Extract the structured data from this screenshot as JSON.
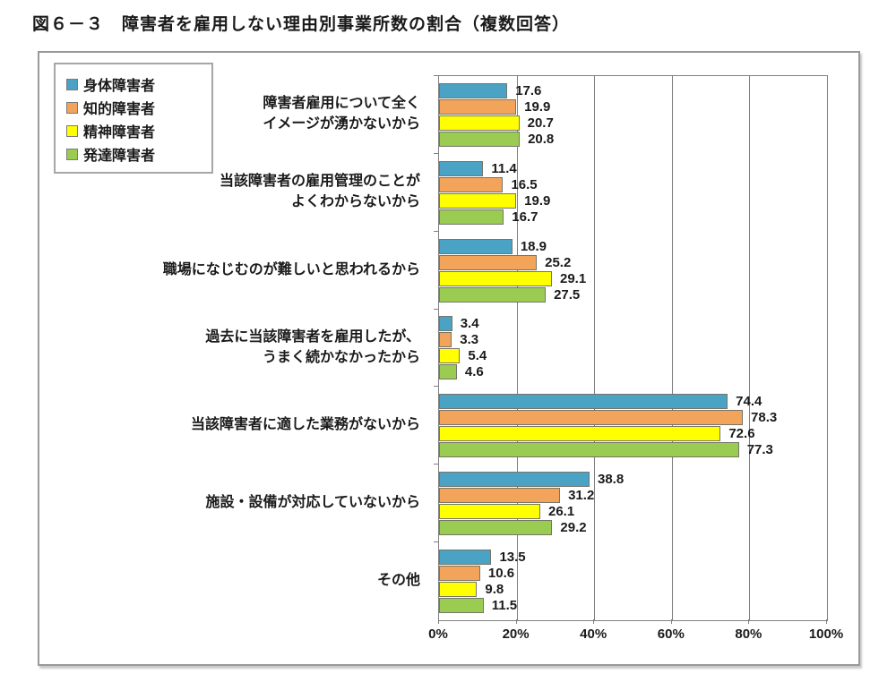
{
  "title": "図６－３　障害者を雇用しない理由別事業所数の割合（複数回答）",
  "chart_data": {
    "type": "bar",
    "orientation": "horizontal",
    "title": "図６－３　障害者を雇用しない理由別事業所数の割合（複数回答）",
    "xlabel": "",
    "ylabel": "",
    "xlim": [
      0,
      100
    ],
    "x_tick_interval": 20,
    "x_ticks": [
      "0%",
      "20%",
      "40%",
      "60%",
      "80%",
      "100%"
    ],
    "gridlines": [
      20,
      40,
      60,
      80
    ],
    "grid": true,
    "legend_position": "top-left",
    "value_label_format": "one-decimal",
    "categories": [
      [
        "障害者雇用について全く",
        "イメージが湧かないから"
      ],
      [
        "当該障害者の雇用管理のことが",
        "よくわからないから"
      ],
      [
        "職場になじむのが難しいと思われるから"
      ],
      [
        "過去に当該障害者を雇用したが、",
        "うまく続かなかったから"
      ],
      [
        "当該障害者に適した業務がないから"
      ],
      [
        "施設・設備が対応していないから"
      ],
      [
        "その他"
      ]
    ],
    "series": [
      {
        "name": "身体障害者",
        "color": "#4AA3C4",
        "values": [
          17.6,
          11.4,
          18.9,
          3.4,
          74.4,
          38.8,
          13.5
        ]
      },
      {
        "name": "知的障害者",
        "color": "#F2A45A",
        "values": [
          19.9,
          16.5,
          25.2,
          3.3,
          78.3,
          31.2,
          10.6
        ]
      },
      {
        "name": "精神障害者",
        "color": "#FFFF00",
        "values": [
          20.7,
          19.9,
          29.1,
          5.4,
          72.6,
          26.1,
          9.8
        ]
      },
      {
        "name": "発達障害者",
        "color": "#9ACC52",
        "values": [
          20.8,
          16.7,
          27.5,
          4.6,
          77.3,
          29.2,
          11.5
        ]
      }
    ]
  }
}
